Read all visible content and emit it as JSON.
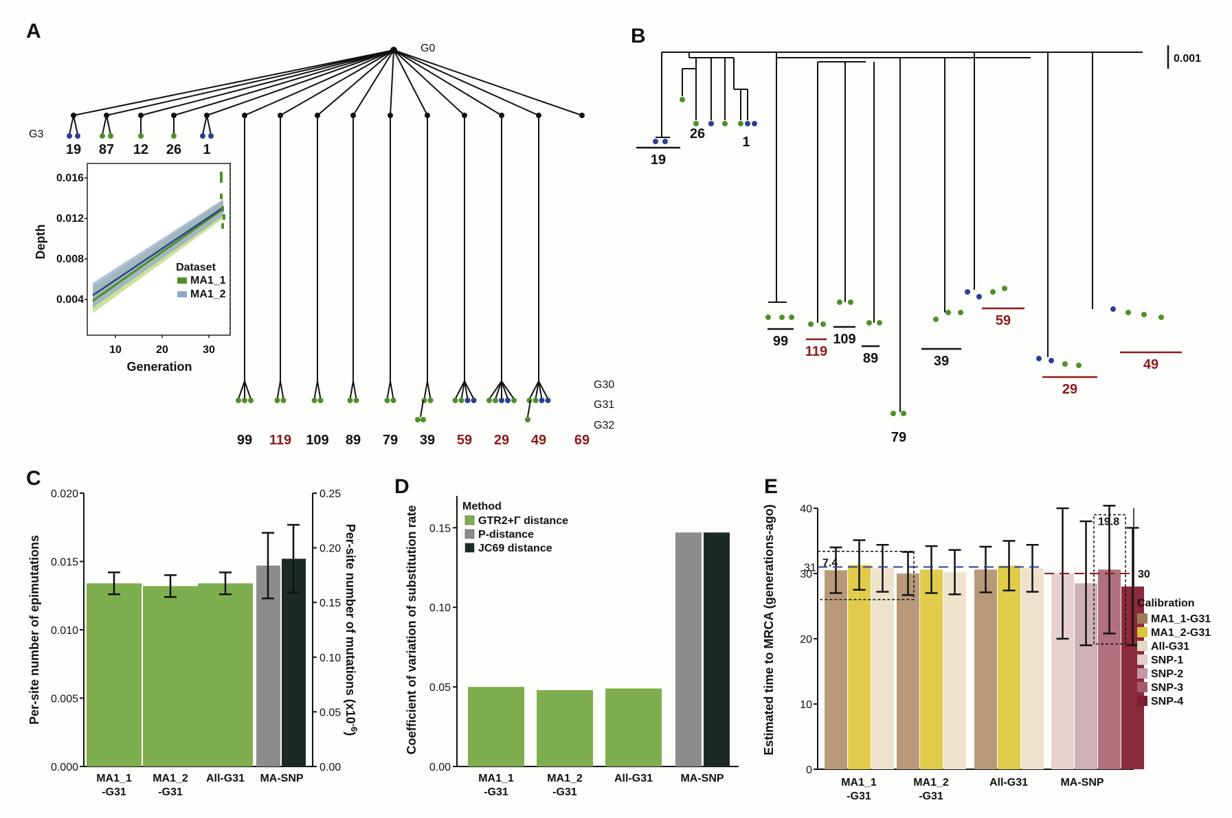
{
  "colors": {
    "green": "#4f8f2a",
    "blue": "#2c3f93",
    "darkred": "#8b1a1a",
    "bar_green": "#7fae4e",
    "gray": "#8c8c8c",
    "black": "#1c2a24"
  },
  "panelA": {
    "label": "A",
    "root": "G0",
    "gen_g3": "G3",
    "gen_g30": "G30",
    "gen_g31": "G31",
    "gen_g32": "G32",
    "g3_lines": [
      "19",
      "87",
      "12",
      "26",
      "1"
    ],
    "g30_lines": [
      {
        "name": "99",
        "red": false
      },
      {
        "name": "119",
        "red": true
      },
      {
        "name": "109",
        "red": false
      },
      {
        "name": "89",
        "red": false
      },
      {
        "name": "79",
        "red": false
      },
      {
        "name": "39",
        "red": false
      },
      {
        "name": "59",
        "red": true
      },
      {
        "name": "29",
        "red": true
      },
      {
        "name": "49",
        "red": true
      },
      {
        "name": "69",
        "red": true
      }
    ],
    "inset": {
      "ylabel": "Depth",
      "xlabel": "Generation",
      "legend_title": "Dataset",
      "legend": [
        "MA1_1",
        "MA1_2"
      ],
      "yticks": [
        "0.004",
        "0.008",
        "0.012",
        "0.016"
      ],
      "xticks": [
        "10",
        "20",
        "30"
      ]
    }
  },
  "panelB": {
    "label": "B",
    "scale": "0.001",
    "groups": [
      {
        "name": "19",
        "red": false
      },
      {
        "name": "26",
        "red": false
      },
      {
        "name": "1",
        "red": false
      },
      {
        "name": "99",
        "red": false
      },
      {
        "name": "119",
        "red": true
      },
      {
        "name": "109",
        "red": false
      },
      {
        "name": "89",
        "red": false
      },
      {
        "name": "39",
        "red": false
      },
      {
        "name": "59",
        "red": true
      },
      {
        "name": "29",
        "red": true
      },
      {
        "name": "49",
        "red": true
      },
      {
        "name": "79",
        "red": false
      }
    ]
  },
  "chart_data": [
    {
      "panel": "C",
      "type": "bar",
      "categories": [
        "MA1_1\n-G31",
        "MA1_2\n-G31",
        "All-G31",
        "MA-SNP"
      ],
      "series": [
        {
          "name": "Per-site number of epimutations",
          "values": [
            0.0134,
            0.0132,
            0.0134,
            0.0147
          ],
          "err": [
            0.0008,
            0.0008,
            0.0008,
            0.0024
          ]
        },
        {
          "name": "Per-site number of mutations (x10^-6)",
          "values": [
            null,
            null,
            null,
            0.19
          ],
          "err": [
            null,
            null,
            null,
            0.031
          ]
        }
      ],
      "ylabel": "Per-site number of epimutations",
      "ylabel_right": "Per-site number of mutations (x10",
      "ylabel_right_sup": "-6",
      "ylabel_right_close": ")",
      "ylim": [
        0,
        0.02
      ],
      "ylim_right": [
        0,
        0.25
      ],
      "yticks": [
        "0.000",
        "0.005",
        "0.010",
        "0.015",
        "0.020"
      ],
      "yticks_right": [
        "0.00",
        "0.05",
        "0.10",
        "0.15",
        "0.20",
        "0.25"
      ]
    },
    {
      "panel": "D",
      "type": "bar",
      "categories": [
        "MA1_1\n-G31",
        "MA1_2\n-G31",
        "All-G31",
        "MA-SNP"
      ],
      "legend_title": "Method",
      "series": [
        {
          "name": "GTR2+Γ distance",
          "values": [
            0.05,
            0.048,
            0.049,
            null
          ]
        },
        {
          "name": "P-distance",
          "values": [
            null,
            null,
            null,
            0.147
          ]
        },
        {
          "name": "JC69 distance",
          "values": [
            null,
            null,
            null,
            0.147
          ]
        }
      ],
      "ylabel": "Coefficient of variation of substitution rate",
      "ylim": [
        0,
        0.17
      ],
      "yticks": [
        "0.00",
        "0.05",
        "0.10",
        "0.15"
      ]
    },
    {
      "panel": "E",
      "type": "bar",
      "categories": [
        "MA1_1\n-G31",
        "MA1_2\n-G31",
        "All-G31",
        "MA-SNP"
      ],
      "legend_title": "Calibration",
      "calibrations": [
        "MA1_1-G31",
        "MA1_2-G31",
        "All-G31",
        "SNP-1",
        "SNP-2",
        "SNP-3",
        "SNP-4"
      ],
      "groups": [
        {
          "values": [
            30.5,
            31.3,
            30.8
          ],
          "err": [
            3.5,
            3.8,
            3.6
          ]
        },
        {
          "values": [
            30.0,
            30.6,
            30.2
          ],
          "err": [
            3.3,
            3.6,
            3.4
          ]
        },
        {
          "values": [
            30.6,
            31.2,
            30.8
          ],
          "err": [
            3.5,
            3.8,
            3.6
          ]
        },
        {
          "values": [
            30.0,
            28.5,
            30.6,
            28.0
          ],
          "err": [
            10.0,
            9.5,
            9.8,
            9.0
          ]
        }
      ],
      "ylabel": "Estimated time to MRCA (generations-ago)",
      "ylim": [
        0,
        40
      ],
      "yticks": [
        "0",
        "10",
        "20",
        "30",
        "40"
      ],
      "ref_blue": "31",
      "ref_red": "30",
      "annot_1": "7.4",
      "annot_2": "19.8"
    }
  ]
}
